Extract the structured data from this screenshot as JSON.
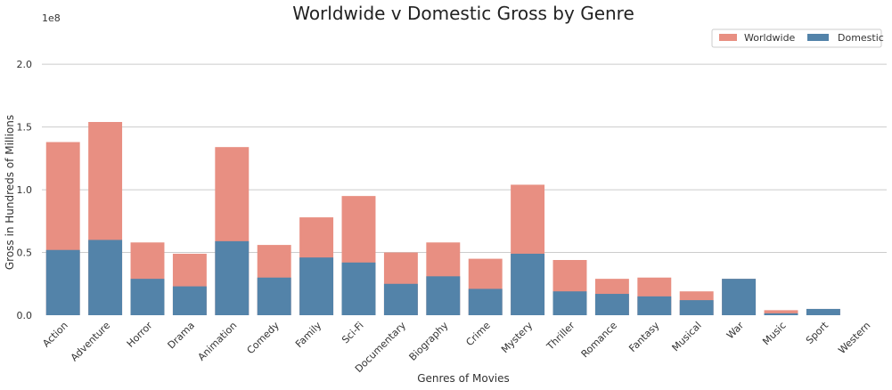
{
  "chart_data": {
    "type": "bar",
    "title": "Worldwide v Domestic Gross by Genre",
    "xlabel": "Genres of Movies",
    "ylabel": "Gross in Hundreds of Millions",
    "y_offset_text": "1e8",
    "ylim": [
      0,
      200000000
    ],
    "yticks": [
      0,
      50000000,
      100000000,
      150000000,
      200000000
    ],
    "ytick_labels": [
      "0.0",
      "0.5",
      "1.0",
      "1.5",
      "2.0"
    ],
    "grid": "horizontal",
    "legend_position": "top-right",
    "categories": [
      "Action",
      "Adventure",
      "Horror",
      "Drama",
      "Animation",
      "Comedy",
      "Family",
      "Sci-Fi",
      "Documentary",
      "Biography",
      "Crime",
      "Mystery",
      "Thriller",
      "Romance",
      "Fantasy",
      "Musical",
      "War",
      "Music",
      "Sport",
      "Western"
    ],
    "series": [
      {
        "name": "Worldwide",
        "color": "#E88F82",
        "values": [
          138000000,
          154000000,
          58000000,
          49000000,
          134000000,
          56000000,
          78000000,
          95000000,
          50000000,
          58000000,
          45000000,
          104000000,
          44000000,
          29000000,
          30000000,
          19000000,
          29000000,
          4000000,
          5000000,
          0
        ]
      },
      {
        "name": "Domestic",
        "color": "#5383A9",
        "values": [
          52000000,
          60000000,
          29000000,
          23000000,
          59000000,
          30000000,
          46000000,
          42000000,
          25000000,
          31000000,
          21000000,
          49000000,
          19000000,
          17000000,
          15000000,
          12000000,
          29000000,
          1500000,
          5000000,
          0
        ]
      }
    ]
  }
}
